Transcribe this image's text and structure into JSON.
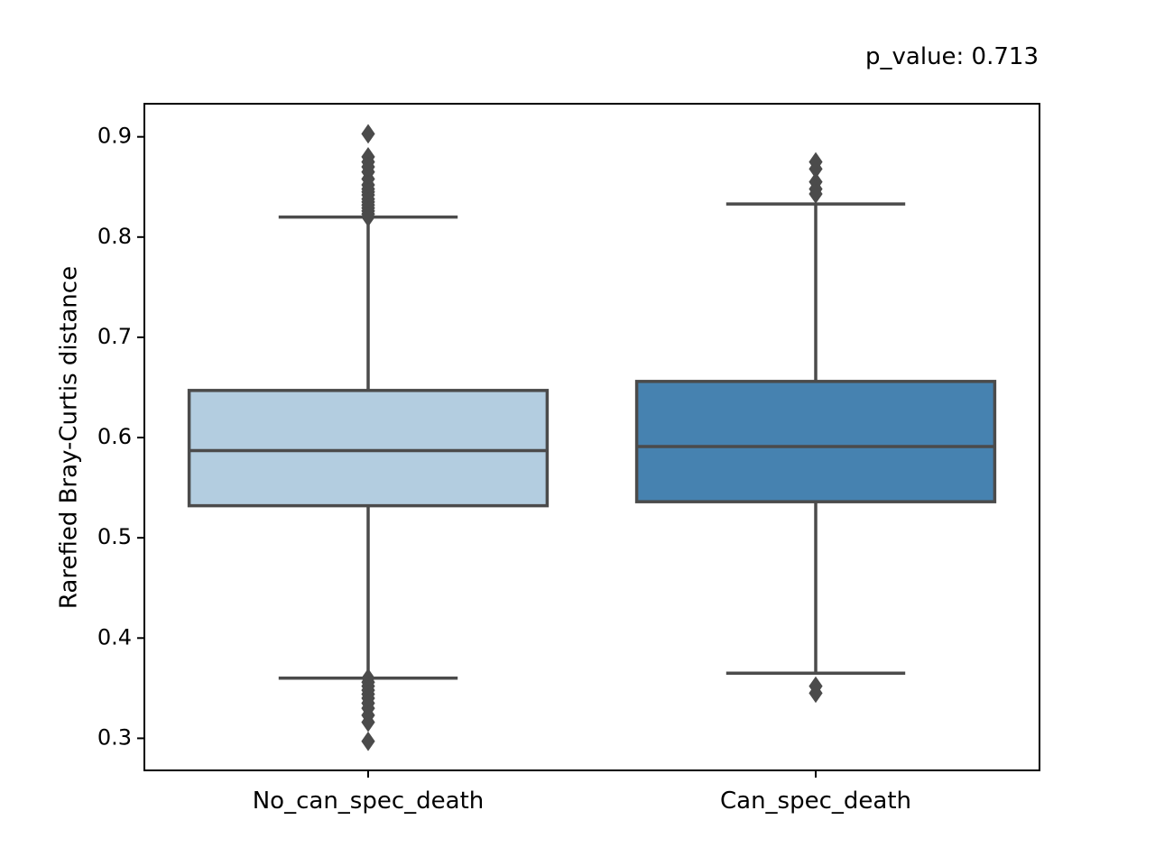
{
  "chart_data": {
    "type": "box",
    "annotation": "p_value: 0.713",
    "xlabel": "",
    "ylabel": "Rarefied Bray-Curtis distance",
    "ylim": [
      0.268,
      0.933
    ],
    "yticks": [
      0.3,
      0.4,
      0.5,
      0.6,
      0.7,
      0.8,
      0.9
    ],
    "grid": false,
    "categories": [
      "No_can_spec_death",
      "Can_spec_death"
    ],
    "boxes": [
      {
        "category": "No_can_spec_death",
        "color": "#b3cde0",
        "whisker_low": 0.36,
        "q1": 0.532,
        "median": 0.587,
        "q3": 0.647,
        "whisker_high": 0.82,
        "outliers": [
          0.903,
          0.88,
          0.875,
          0.87,
          0.865,
          0.858,
          0.852,
          0.848,
          0.845,
          0.842,
          0.838,
          0.835,
          0.832,
          0.829,
          0.826,
          0.823,
          0.82,
          0.36,
          0.356,
          0.352,
          0.348,
          0.344,
          0.34,
          0.335,
          0.33,
          0.323,
          0.316,
          0.297
        ]
      },
      {
        "category": "Can_spec_death",
        "color": "#4682b0",
        "whisker_low": 0.365,
        "q1": 0.536,
        "median": 0.591,
        "q3": 0.656,
        "whisker_high": 0.833,
        "outliers": [
          0.875,
          0.868,
          0.855,
          0.848,
          0.843,
          0.352,
          0.345
        ]
      }
    ]
  }
}
